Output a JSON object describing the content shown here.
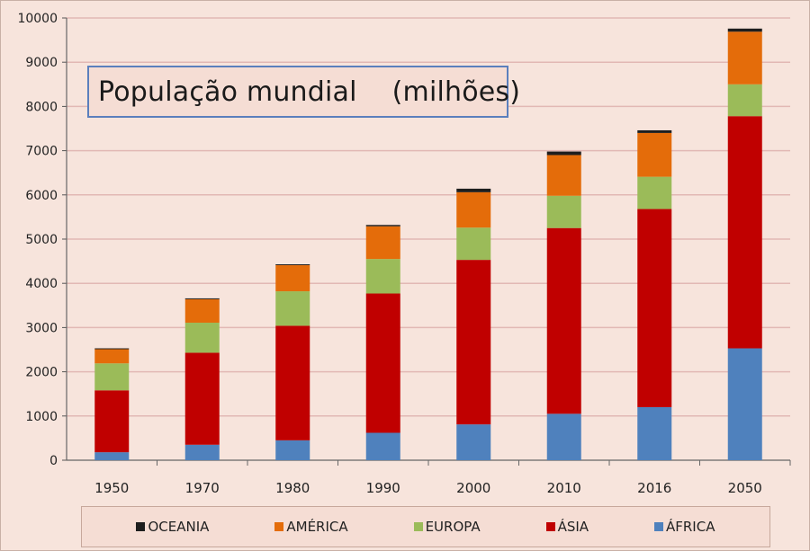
{
  "colors": {
    "background": "#f7e4dc",
    "grid": "#e2b8b4",
    "oceania": "#1e1e1e",
    "america": "#e46c0a",
    "europa": "#9bbb59",
    "asia": "#c00000",
    "africa": "#4f81bd"
  },
  "chart_data": {
    "type": "bar",
    "stacked": true,
    "title": "População mundial    (milhões)",
    "categories": [
      "1950",
      "1970",
      "1980",
      "1990",
      "2000",
      "2010",
      "2016",
      "2050"
    ],
    "y_ticks": [
      "0",
      "1000",
      "2000",
      "3000",
      "4000",
      "5000",
      "6000",
      "7000",
      "8000",
      "9000",
      "10000"
    ],
    "ylim": [
      0,
      10000
    ],
    "grid": true,
    "legend_position": "bottom",
    "series": [
      {
        "name": "ÁFRICA",
        "color": "#4f81bd",
        "values": [
          180,
          350,
          450,
          620,
          810,
          1050,
          1200,
          2530
        ]
      },
      {
        "name": "ÁSIA",
        "color": "#c00000",
        "values": [
          1400,
          2080,
          2590,
          3150,
          3720,
          4200,
          4480,
          5250
        ]
      },
      {
        "name": "EUROPA",
        "color": "#9bbb59",
        "values": [
          610,
          680,
          780,
          780,
          730,
          730,
          730,
          720
        ]
      },
      {
        "name": "AMÉRICA",
        "color": "#e46c0a",
        "values": [
          320,
          530,
          590,
          740,
          800,
          920,
          990,
          1190
        ]
      },
      {
        "name": "OCEANIA",
        "color": "#1e1e1e",
        "values": [
          20,
          20,
          20,
          30,
          80,
          80,
          60,
          70
        ]
      }
    ]
  },
  "legend": [
    {
      "label": "OCEANIA",
      "color": "#1e1e1e"
    },
    {
      "label": "AMÉRICA",
      "color": "#e46c0a"
    },
    {
      "label": "EUROPA",
      "color": "#9bbb59"
    },
    {
      "label": "ÁSIA",
      "color": "#c00000"
    },
    {
      "label": "ÁFRICA",
      "color": "#4f81bd"
    }
  ]
}
